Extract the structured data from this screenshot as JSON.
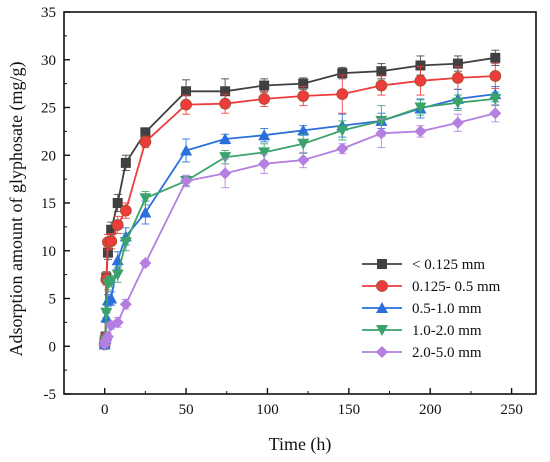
{
  "chart_data": {
    "type": "line",
    "xlabel": "Time (h)",
    "ylabel": "Adsorption amount of glyphosate (mg/g)",
    "xlim": [
      -25,
      265
    ],
    "ylim": [
      -5,
      35
    ],
    "xticks": [
      0,
      50,
      100,
      150,
      200,
      250
    ],
    "yticks": [
      -5,
      0,
      5,
      10,
      15,
      20,
      25,
      30,
      35
    ],
    "x_tick_labels": [
      "0",
      "50",
      "100",
      "150",
      "200",
      "250"
    ],
    "y_tick_labels": [
      "-5",
      "0",
      "5",
      "10",
      "15",
      "20",
      "25",
      "30",
      "35"
    ],
    "legend_position": "lower-right",
    "series": [
      {
        "name": "< 0.125 mm",
        "color": "#404040",
        "marker": "square",
        "x": [
          0,
          0.5,
          1,
          2,
          4,
          8,
          13,
          25,
          50,
          74,
          98,
          122,
          146,
          170,
          194,
          217,
          240
        ],
        "y": [
          0.3,
          1.0,
          7.2,
          9.8,
          12.2,
          15.0,
          19.2,
          22.4,
          26.7,
          26.7,
          27.3,
          27.5,
          28.6,
          28.8,
          29.4,
          29.6,
          30.2
        ],
        "err": [
          0.3,
          0.5,
          0.6,
          0.7,
          0.8,
          0.9,
          0.8,
          0.4,
          1.2,
          1.3,
          0.7,
          0.6,
          0.6,
          0.8,
          1.0,
          0.8,
          0.8
        ]
      },
      {
        "name": "0.125- 0.5 mm",
        "color": "#ee3b3b",
        "marker": "circle",
        "x": [
          0,
          0.5,
          1,
          2,
          4,
          8,
          13,
          25,
          50,
          74,
          98,
          122,
          146,
          170,
          194,
          217,
          240
        ],
        "y": [
          0.2,
          0.9,
          7.0,
          10.9,
          11.0,
          12.7,
          14.2,
          21.4,
          25.3,
          25.4,
          25.9,
          26.2,
          26.4,
          27.3,
          27.8,
          28.1,
          28.3
        ],
        "err": [
          0.2,
          0.5,
          0.6,
          0.8,
          0.8,
          0.9,
          0.8,
          0.6,
          1.0,
          1.0,
          0.8,
          1.0,
          2.0,
          1.0,
          1.5,
          1.2,
          1.3
        ]
      },
      {
        "name": "0.5-1.0 mm",
        "color": "#2a6fdb",
        "marker": "triangle-up",
        "x": [
          0,
          0.5,
          1,
          2,
          4,
          8,
          13,
          25,
          50,
          74,
          98,
          122,
          146,
          170,
          194,
          217,
          240
        ],
        "y": [
          0.2,
          0.8,
          3.0,
          4.8,
          5.0,
          9.0,
          11.5,
          14.0,
          20.5,
          21.7,
          22.1,
          22.6,
          23.1,
          23.6,
          24.9,
          25.9,
          26.4
        ],
        "err": [
          0.2,
          0.4,
          0.5,
          0.6,
          0.7,
          0.9,
          0.9,
          1.2,
          1.2,
          0.5,
          0.7,
          0.5,
          1.2,
          0.8,
          1.0,
          1.0,
          0.8
        ]
      },
      {
        "name": "1.0-2.0 mm",
        "color": "#3aa36b",
        "marker": "triangle-down",
        "x": [
          0,
          0.5,
          1,
          2,
          4,
          8,
          13,
          25,
          50,
          74,
          98,
          122,
          146,
          170,
          194,
          217,
          240
        ],
        "y": [
          0.2,
          0.6,
          3.5,
          6.5,
          6.8,
          7.5,
          10.9,
          15.5,
          17.3,
          19.8,
          20.3,
          21.2,
          22.6,
          23.6,
          25.0,
          25.5,
          25.9
        ],
        "err": [
          0.2,
          0.4,
          0.5,
          0.6,
          0.6,
          0.8,
          0.9,
          0.7,
          0.5,
          0.7,
          0.9,
          1.0,
          1.0,
          1.6,
          0.8,
          0.8,
          0.7
        ]
      },
      {
        "name": "2.0-5.0 mm",
        "color": "#b47fe0",
        "marker": "diamond",
        "x": [
          0,
          0.5,
          1,
          2,
          4,
          8,
          13,
          25,
          50,
          74,
          98,
          122,
          146,
          170,
          194,
          217,
          240
        ],
        "y": [
          0.2,
          0.5,
          0.7,
          1.0,
          2.2,
          2.5,
          4.4,
          8.7,
          17.3,
          18.1,
          19.1,
          19.5,
          20.7,
          22.3,
          22.5,
          23.4,
          24.4
        ],
        "err": [
          0.2,
          0.3,
          0.3,
          0.4,
          0.4,
          0.5,
          0.5,
          0.3,
          0.6,
          1.5,
          1.0,
          0.8,
          0.5,
          1.5,
          0.6,
          0.9,
          0.9
        ]
      }
    ]
  }
}
